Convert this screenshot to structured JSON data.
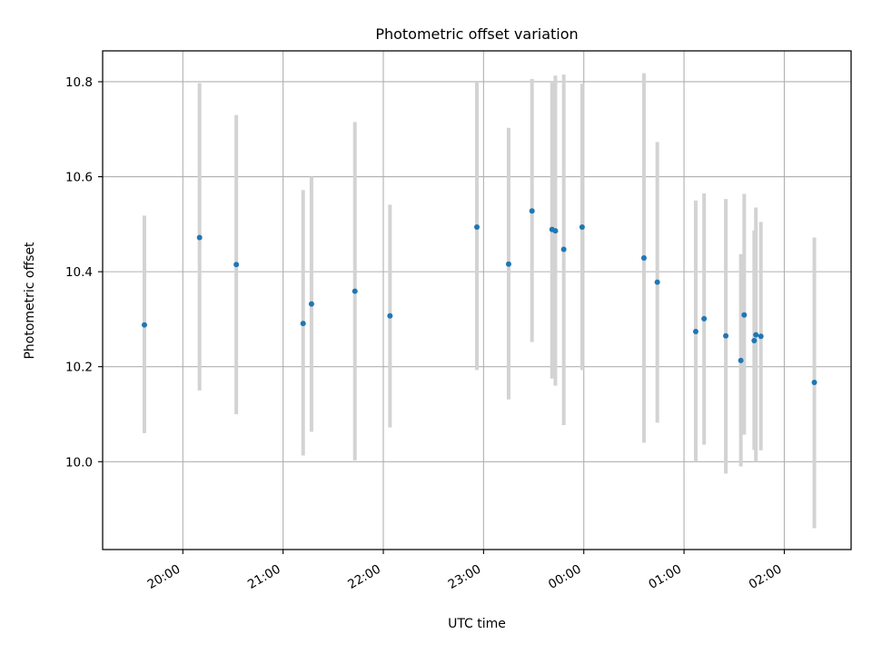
{
  "chart_data": {
    "type": "scatter",
    "title": "Photometric offset variation",
    "xlabel": "UTC time",
    "ylabel": "Photometric offset",
    "x_is_time": true,
    "xlim": [
      "19:12",
      "26:40"
    ],
    "ylim": [
      9.815,
      10.865
    ],
    "xticks": [
      {
        "value": "20:00",
        "label": "20:00"
      },
      {
        "value": "21:00",
        "label": "21:00"
      },
      {
        "value": "22:00",
        "label": "22:00"
      },
      {
        "value": "23:00",
        "label": "23:00"
      },
      {
        "value": "24:00",
        "label": "00:00"
      },
      {
        "value": "25:00",
        "label": "01:00"
      },
      {
        "value": "26:00",
        "label": "02:00"
      }
    ],
    "yticks": [
      10.0,
      10.2,
      10.4,
      10.6,
      10.8
    ],
    "ytick_labels": [
      "10.0",
      "10.2",
      "10.4",
      "10.6",
      "10.8"
    ],
    "grid": true,
    "colors": {
      "point": "#1f77b4",
      "errorbar": "#d3d3d3",
      "grid": "#b0b0b0"
    },
    "points": [
      {
        "x": "19:37",
        "y": 10.288,
        "lo": 10.06,
        "hi": 10.518
      },
      {
        "x": "20:10",
        "y": 10.472,
        "lo": 10.15,
        "hi": 10.797
      },
      {
        "x": "20:32",
        "y": 10.415,
        "lo": 10.1,
        "hi": 10.73
      },
      {
        "x": "21:12",
        "y": 10.291,
        "lo": 10.013,
        "hi": 10.572
      },
      {
        "x": "21:17",
        "y": 10.332,
        "lo": 10.063,
        "hi": 10.6
      },
      {
        "x": "21:43",
        "y": 10.359,
        "lo": 10.003,
        "hi": 10.715
      },
      {
        "x": "22:04",
        "y": 10.307,
        "lo": 10.072,
        "hi": 10.541
      },
      {
        "x": "22:56",
        "y": 10.494,
        "lo": 10.193,
        "hi": 10.8
      },
      {
        "x": "23:15",
        "y": 10.416,
        "lo": 10.131,
        "hi": 10.703
      },
      {
        "x": "23:29",
        "y": 10.528,
        "lo": 10.252,
        "hi": 10.806
      },
      {
        "x": "23:41",
        "y": 10.489,
        "lo": 10.175,
        "hi": 10.802
      },
      {
        "x": "23:43",
        "y": 10.486,
        "lo": 10.16,
        "hi": 10.813
      },
      {
        "x": "23:48",
        "y": 10.447,
        "lo": 10.077,
        "hi": 10.815
      },
      {
        "x": "23:59",
        "y": 10.494,
        "lo": 10.193,
        "hi": 10.796
      },
      {
        "x": "24:36",
        "y": 10.429,
        "lo": 10.04,
        "hi": 10.818
      },
      {
        "x": "24:44",
        "y": 10.378,
        "lo": 10.082,
        "hi": 10.673
      },
      {
        "x": "25:07",
        "y": 10.274,
        "lo": 10.0,
        "hi": 10.55
      },
      {
        "x": "25:12",
        "y": 10.301,
        "lo": 10.036,
        "hi": 10.565
      },
      {
        "x": "25:25",
        "y": 10.265,
        "lo": 9.975,
        "hi": 10.553
      },
      {
        "x": "25:34",
        "y": 10.213,
        "lo": 9.99,
        "hi": 10.437
      },
      {
        "x": "25:36",
        "y": 10.309,
        "lo": 10.057,
        "hi": 10.564
      },
      {
        "x": "25:42",
        "y": 10.255,
        "lo": 10.025,
        "hi": 10.487
      },
      {
        "x": "25:43",
        "y": 10.267,
        "lo": 10.0,
        "hi": 10.535
      },
      {
        "x": "25:46",
        "y": 10.264,
        "lo": 10.024,
        "hi": 10.505
      },
      {
        "x": "26:18",
        "y": 10.167,
        "lo": 9.86,
        "hi": 10.472
      }
    ]
  }
}
